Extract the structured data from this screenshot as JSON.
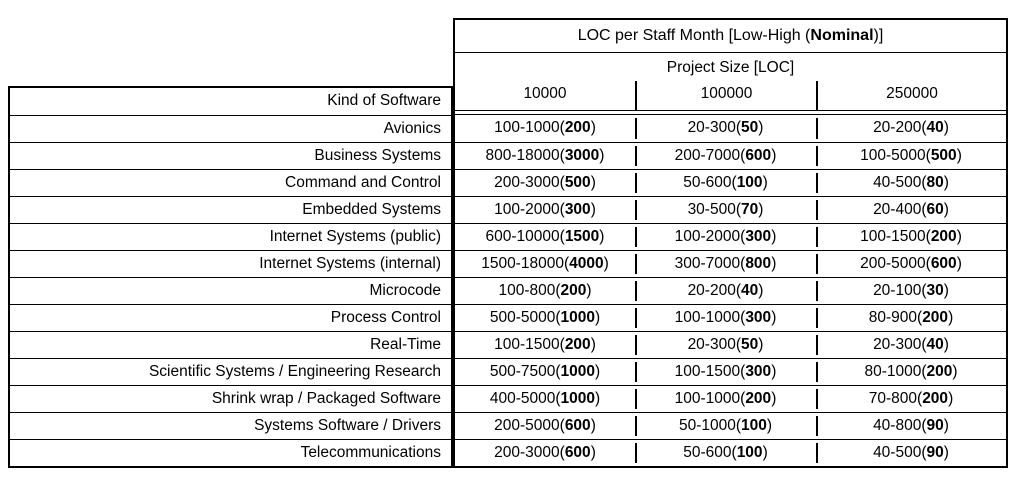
{
  "title": {
    "prefix": "LOC per Staff Month [Low-High (",
    "bold": "Nominal",
    "suffix": ")]"
  },
  "subtitle": "Project Size [LOC]",
  "kind_of_software_label": "Kind of Software",
  "project_sizes": [
    "10000",
    "100000",
    "250000"
  ],
  "rows": [
    {
      "kind": "Avionics",
      "values": [
        {
          "range": "100-1000",
          "nominal": "200"
        },
        {
          "range": "20-300",
          "nominal": "50"
        },
        {
          "range": "20-200",
          "nominal": "40"
        }
      ]
    },
    {
      "kind": "Business Systems",
      "values": [
        {
          "range": "800-18000",
          "nominal": "3000"
        },
        {
          "range": "200-7000",
          "nominal": "600"
        },
        {
          "range": "100-5000",
          "nominal": "500"
        }
      ]
    },
    {
      "kind": "Command and Control",
      "values": [
        {
          "range": "200-3000",
          "nominal": "500"
        },
        {
          "range": "50-600",
          "nominal": "100"
        },
        {
          "range": "40-500",
          "nominal": "80"
        }
      ]
    },
    {
      "kind": "Embedded Systems",
      "values": [
        {
          "range": "100-2000",
          "nominal": "300"
        },
        {
          "range": "30-500",
          "nominal": "70"
        },
        {
          "range": "20-400",
          "nominal": "60"
        }
      ]
    },
    {
      "kind": "Internet Systems (public)",
      "values": [
        {
          "range": "600-10000",
          "nominal": "1500"
        },
        {
          "range": "100-2000",
          "nominal": "300"
        },
        {
          "range": "100-1500",
          "nominal": "200"
        }
      ]
    },
    {
      "kind": "Internet Systems (internal)",
      "values": [
        {
          "range": "1500-18000",
          "nominal": "4000"
        },
        {
          "range": "300-7000",
          "nominal": "800"
        },
        {
          "range": "200-5000",
          "nominal": "600"
        }
      ]
    },
    {
      "kind": "Microcode",
      "values": [
        {
          "range": "100-800",
          "nominal": "200"
        },
        {
          "range": "20-200",
          "nominal": "40"
        },
        {
          "range": "20-100",
          "nominal": "30"
        }
      ]
    },
    {
      "kind": "Process Control",
      "values": [
        {
          "range": "500-5000",
          "nominal": "1000"
        },
        {
          "range": "100-1000",
          "nominal": "300"
        },
        {
          "range": "80-900",
          "nominal": "200"
        }
      ]
    },
    {
      "kind": "Real-Time",
      "values": [
        {
          "range": "100-1500",
          "nominal": "200"
        },
        {
          "range": "20-300",
          "nominal": "50"
        },
        {
          "range": "20-300",
          "nominal": "40"
        }
      ]
    },
    {
      "kind": "Scientific Systems / Engineering Research",
      "values": [
        {
          "range": "500-7500",
          "nominal": "1000"
        },
        {
          "range": "100-1500",
          "nominal": "300"
        },
        {
          "range": "80-1000",
          "nominal": "200"
        }
      ]
    },
    {
      "kind": "Shrink wrap / Packaged Software",
      "values": [
        {
          "range": "400-5000",
          "nominal": "1000"
        },
        {
          "range": "100-1000",
          "nominal": "200"
        },
        {
          "range": "70-800",
          "nominal": "200"
        }
      ]
    },
    {
      "kind": "Systems Software / Drivers",
      "values": [
        {
          "range": "200-5000",
          "nominal": "600"
        },
        {
          "range": "50-1000",
          "nominal": "100"
        },
        {
          "range": "40-800",
          "nominal": "90"
        }
      ]
    },
    {
      "kind": "Telecommunications",
      "values": [
        {
          "range": "200-3000",
          "nominal": "600"
        },
        {
          "range": "50-600",
          "nominal": "100"
        },
        {
          "range": "40-500",
          "nominal": "90"
        }
      ]
    }
  ],
  "colors": {
    "border": "#000000",
    "text": "#000000",
    "background": "#ffffff"
  }
}
